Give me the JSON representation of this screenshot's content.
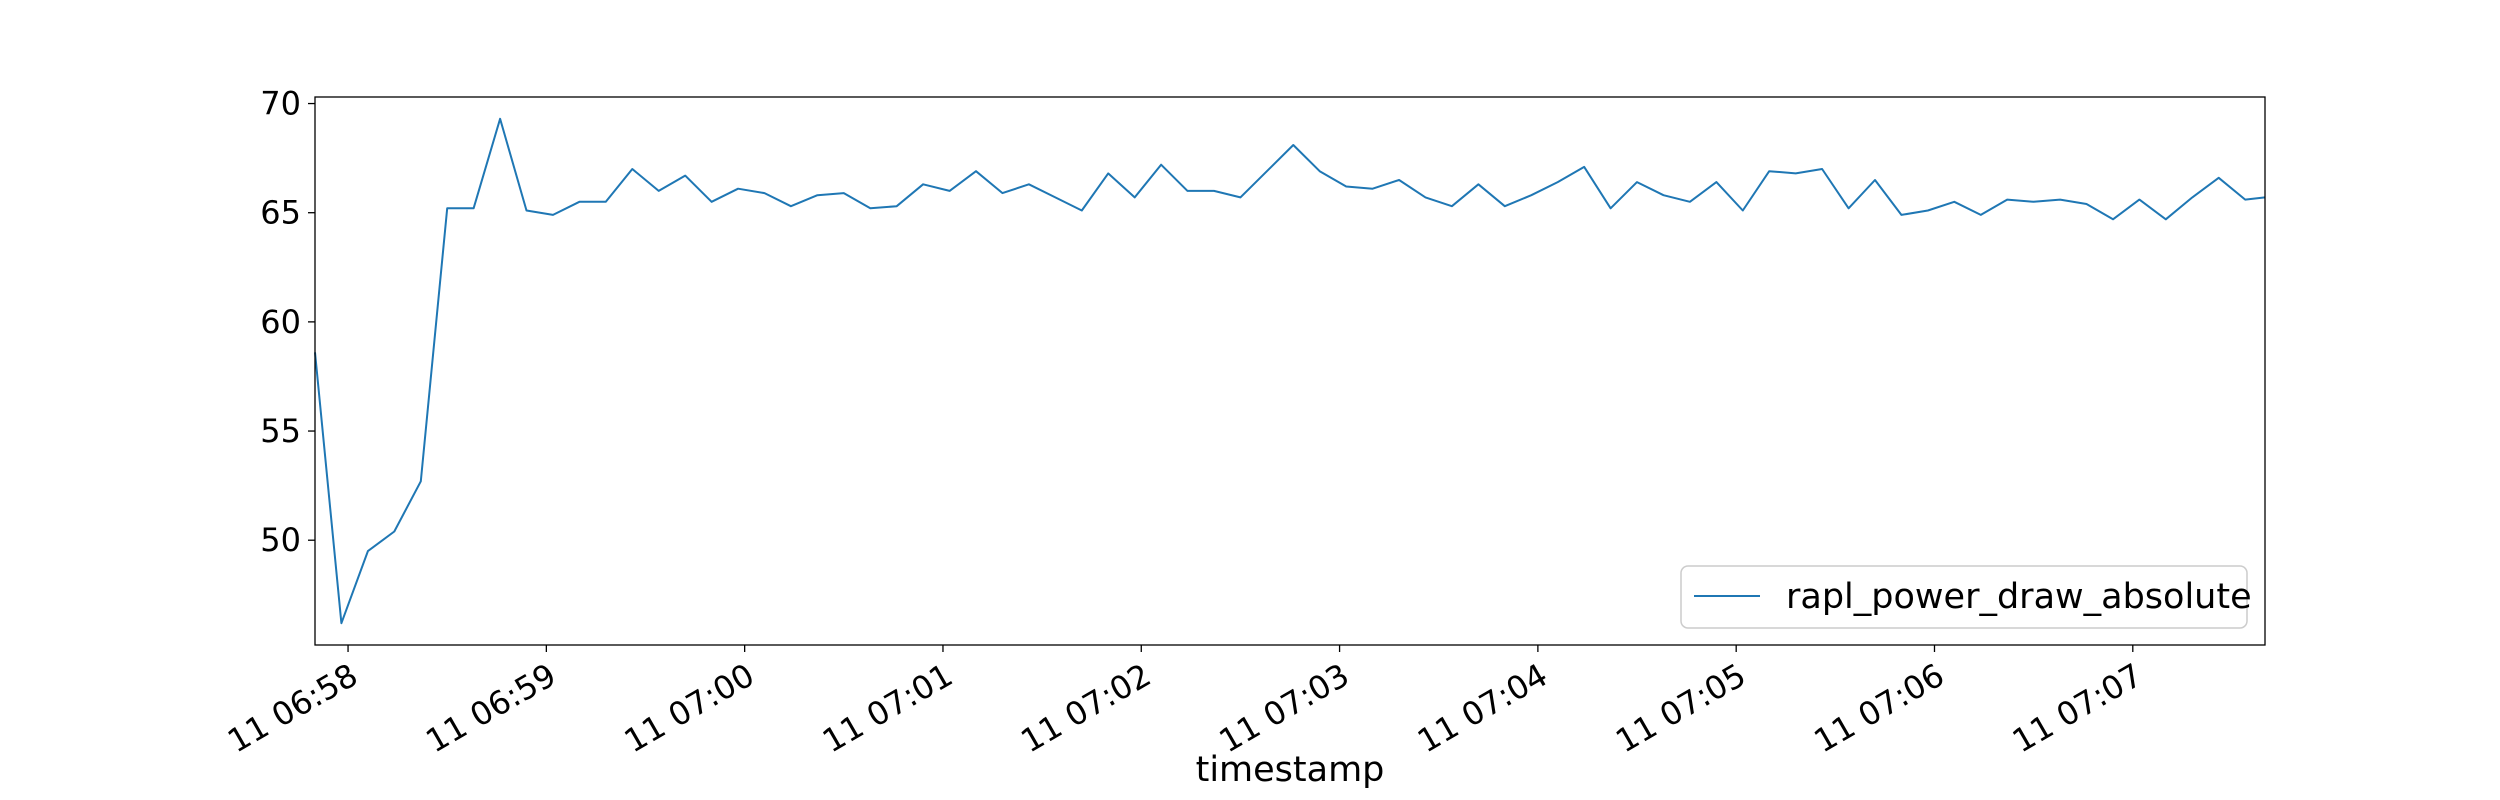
{
  "chart_data": {
    "type": "line",
    "title": "",
    "xlabel": "timestamp",
    "ylabel": "",
    "xlim": [
      "11 06:57:50",
      "11 07:07:40"
    ],
    "ylim": [
      45.2,
      70.3
    ],
    "grid": false,
    "legend_position": "lower-right",
    "x_ticks": [
      {
        "time": "11 06:58:00",
        "label": "11 06:58"
      },
      {
        "time": "11 06:59:00",
        "label": "11 06:59"
      },
      {
        "time": "11 07:00:00",
        "label": "11 07:00"
      },
      {
        "time": "11 07:01:00",
        "label": "11 07:01"
      },
      {
        "time": "11 07:02:00",
        "label": "11 07:02"
      },
      {
        "time": "11 07:03:00",
        "label": "11 07:03"
      },
      {
        "time": "11 07:04:00",
        "label": "11 07:04"
      },
      {
        "time": "11 07:05:00",
        "label": "11 07:05"
      },
      {
        "time": "11 07:06:00",
        "label": "11 07:06"
      },
      {
        "time": "11 07:07:00",
        "label": "11 07:07"
      }
    ],
    "y_ticks": [
      50,
      55,
      60,
      65,
      70
    ],
    "series": [
      {
        "name": "rapl_power_draw_absolute",
        "color": "#1f77b4",
        "x": [
          "11 06:57:50",
          "11 06:57:58",
          "11 06:58:06",
          "11 06:58:14",
          "11 06:58:22",
          "11 06:58:30",
          "11 06:58:38",
          "11 06:58:46",
          "11 06:58:54",
          "11 06:59:02",
          "11 06:59:10",
          "11 06:59:18",
          "11 06:59:26",
          "11 06:59:34",
          "11 06:59:42",
          "11 06:59:50",
          "11 06:59:58",
          "11 07:00:06",
          "11 07:00:14",
          "11 07:00:22",
          "11 07:00:30",
          "11 07:00:38",
          "11 07:00:46",
          "11 07:00:54",
          "11 07:01:02",
          "11 07:01:10",
          "11 07:01:18",
          "11 07:01:26",
          "11 07:01:34",
          "11 07:01:42",
          "11 07:01:50",
          "11 07:01:58",
          "11 07:02:06",
          "11 07:02:14",
          "11 07:02:22",
          "11 07:02:30",
          "11 07:02:38",
          "11 07:02:46",
          "11 07:02:54",
          "11 07:03:02",
          "11 07:03:10",
          "11 07:03:18",
          "11 07:03:26",
          "11 07:03:34",
          "11 07:03:42",
          "11 07:03:50",
          "11 07:03:58",
          "11 07:04:06",
          "11 07:04:14",
          "11 07:04:22",
          "11 07:04:30",
          "11 07:04:38",
          "11 07:04:46",
          "11 07:04:54",
          "11 07:05:02",
          "11 07:05:10",
          "11 07:05:18",
          "11 07:05:26",
          "11 07:05:34",
          "11 07:05:42",
          "11 07:05:50",
          "11 07:05:58",
          "11 07:06:06",
          "11 07:06:14",
          "11 07:06:22",
          "11 07:06:30",
          "11 07:06:38",
          "11 07:06:46",
          "11 07:06:54",
          "11 07:07:02",
          "11 07:07:10",
          "11 07:07:18",
          "11 07:07:26",
          "11 07:07:34",
          "11 07:07:40"
        ],
        "values": [
          58.6,
          46.2,
          49.5,
          50.4,
          52.7,
          65.2,
          65.2,
          69.3,
          65.1,
          64.9,
          65.5,
          65.5,
          67.0,
          66.0,
          66.7,
          65.5,
          66.1,
          65.9,
          65.3,
          65.8,
          65.9,
          65.2,
          65.3,
          66.3,
          66.0,
          66.9,
          65.9,
          66.3,
          65.7,
          65.1,
          66.8,
          65.7,
          67.2,
          66.0,
          66.0,
          65.7,
          66.9,
          68.1,
          66.9,
          66.2,
          66.1,
          66.5,
          65.7,
          65.3,
          66.3,
          65.3,
          65.8,
          66.4,
          67.1,
          65.2,
          66.4,
          65.8,
          65.5,
          66.4,
          65.1,
          66.9,
          66.8,
          67.0,
          65.2,
          66.5,
          64.9,
          65.1,
          65.5,
          64.9,
          65.6,
          65.5,
          65.6,
          65.4,
          64.7,
          65.6,
          64.7,
          65.7,
          66.6,
          65.6,
          65.7
        ]
      }
    ]
  }
}
